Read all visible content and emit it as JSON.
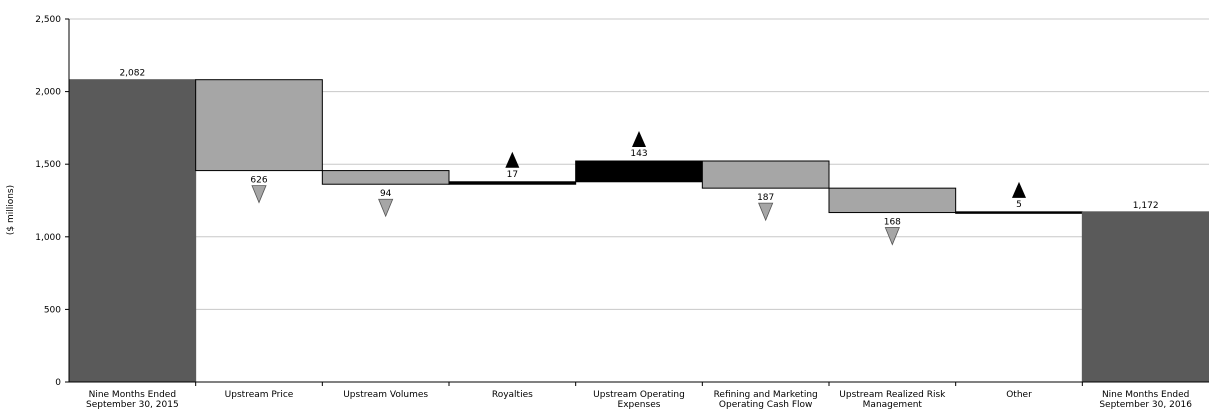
{
  "chart_data": {
    "type": "bar",
    "subtype": "waterfall",
    "title": "",
    "ylabel": "($ millions)",
    "xlabel": "",
    "ylim": [
      0,
      2500
    ],
    "yticks": [
      0,
      500,
      1000,
      1500,
      2000,
      2500
    ],
    "ytick_labels": [
      "0",
      "500",
      "1,000",
      "1,500",
      "2,000",
      "2,500"
    ],
    "grid": true,
    "legend": "none",
    "colors": {
      "total": "#5a5a5a",
      "decrease": "#a6a6a6",
      "increase": "#000000",
      "gridline": "#c8c8c8",
      "arrow_down": "#a6a6a6",
      "arrow_up": "#000000"
    },
    "steps": [
      {
        "category": [
          "Nine Months Ended",
          "September 30, 2015"
        ],
        "kind": "total",
        "value": 2082,
        "label": "2,082"
      },
      {
        "category": [
          "Upstream Price"
        ],
        "kind": "decrease",
        "value": 626,
        "label": "626"
      },
      {
        "category": [
          "Upstream Volumes"
        ],
        "kind": "decrease",
        "value": 94,
        "label": "94"
      },
      {
        "category": [
          "Royalties"
        ],
        "kind": "increase",
        "value": 17,
        "label": "17"
      },
      {
        "category": [
          "Upstream Operating",
          "Expenses"
        ],
        "kind": "increase",
        "value": 143,
        "label": "143"
      },
      {
        "category": [
          "Refining and Marketing",
          "Operating Cash Flow"
        ],
        "kind": "decrease",
        "value": 187,
        "label": "187"
      },
      {
        "category": [
          "Upstream Realized Risk",
          "Management"
        ],
        "kind": "decrease",
        "value": 168,
        "label": "168"
      },
      {
        "category": [
          "Other"
        ],
        "kind": "increase",
        "value": 5,
        "label": "5"
      },
      {
        "category": [
          "Nine Months Ended",
          "September 30, 2016"
        ],
        "kind": "total",
        "value": 1172,
        "label": "1,172"
      }
    ]
  }
}
